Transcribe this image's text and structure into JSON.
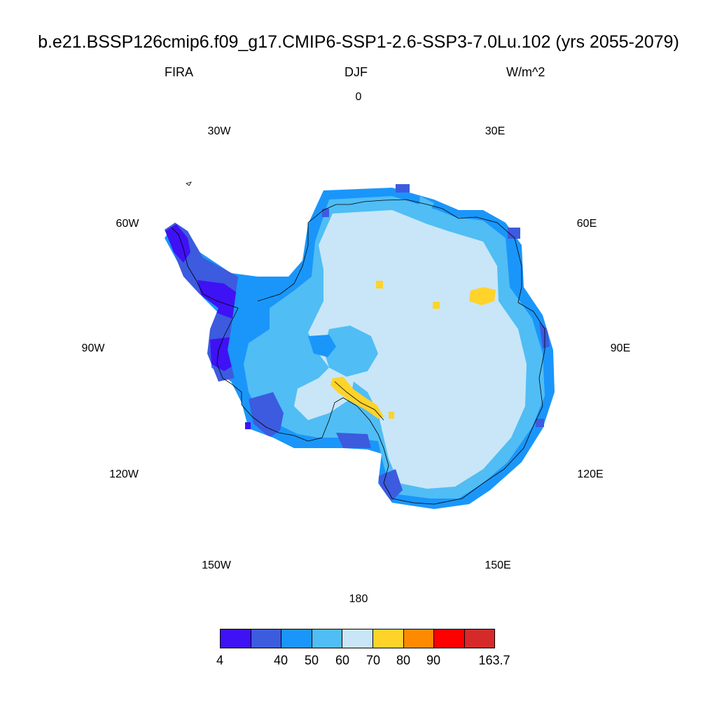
{
  "title": "b.e21.BSSP126cmip6.f09_g17.CMIP6-SSP1-2.6-SSP3-7.0Lu.102 (yrs 2055-2079)",
  "variable": "FIRA",
  "season": "DJF",
  "units": "W/m^2",
  "longitude_labels": {
    "lon_0": "0",
    "lon_30e": "30E",
    "lon_60e": "60E",
    "lon_90e": "90E",
    "lon_120e": "120E",
    "lon_150e": "150E",
    "lon_180": "180",
    "lon_150w": "150W",
    "lon_120w": "120W",
    "lon_90w": "90W",
    "lon_60w": "60W",
    "lon_30w": "30W"
  },
  "colorbar": {
    "colors": [
      "#3f11f5",
      "#3c5bdf",
      "#1a96fa",
      "#50bdf5",
      "#c8e6f7",
      "#ffd329",
      "#ff8a00",
      "#ff0000",
      "#d62a2a"
    ],
    "labels": {
      "l0": "4",
      "l2": "40",
      "l3": "50",
      "l4": "60",
      "l5": "70",
      "l6": "80",
      "l7": "90",
      "l9": "163.7"
    }
  },
  "map_colors": {
    "interior": "#c8e6f7",
    "band1": "#50bdf5",
    "band2": "#1a96fa",
    "band3": "#3c5bdf",
    "band4": "#3f11f5",
    "warm": "#ffd329"
  }
}
